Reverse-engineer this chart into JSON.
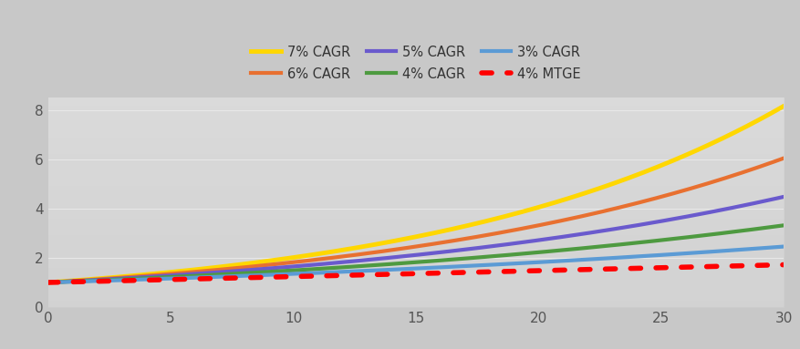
{
  "x_min": 0,
  "x_max": 30,
  "y_min": 0,
  "y_max": 8.5,
  "x_ticks": [
    0,
    5,
    10,
    15,
    20,
    25,
    30
  ],
  "y_ticks": [
    0,
    2,
    4,
    6,
    8
  ],
  "series": [
    {
      "label": "7% CAGR",
      "rate": 0.07,
      "color": "#FFD700",
      "linewidth": 3.5,
      "is_linear": false
    },
    {
      "label": "6% CAGR",
      "rate": 0.06,
      "color": "#E87030",
      "linewidth": 3.0,
      "is_linear": false
    },
    {
      "label": "5% CAGR",
      "rate": 0.05,
      "color": "#6A5ACD",
      "linewidth": 3.0,
      "is_linear": false
    },
    {
      "label": "4% CAGR",
      "rate": 0.04,
      "color": "#4E9A40",
      "linewidth": 3.0,
      "is_linear": false
    },
    {
      "label": "3% CAGR",
      "rate": 0.03,
      "color": "#5B9BD5",
      "linewidth": 3.0,
      "is_linear": false
    },
    {
      "label": "4% MTGE",
      "rate": 0.0,
      "color": "#FF0000",
      "linewidth": 4.0,
      "is_linear": true,
      "end_value": 1.72
    }
  ],
  "bg_left": "#b0b0b0",
  "bg_center": "#d8d8d8",
  "bg_right": "#c0c0c0",
  "plot_bg": "#cccccc",
  "legend_fontsize": 10.5,
  "tick_fontsize": 11,
  "grid_color": "#e8e8e8",
  "grid_linewidth": 0.8
}
